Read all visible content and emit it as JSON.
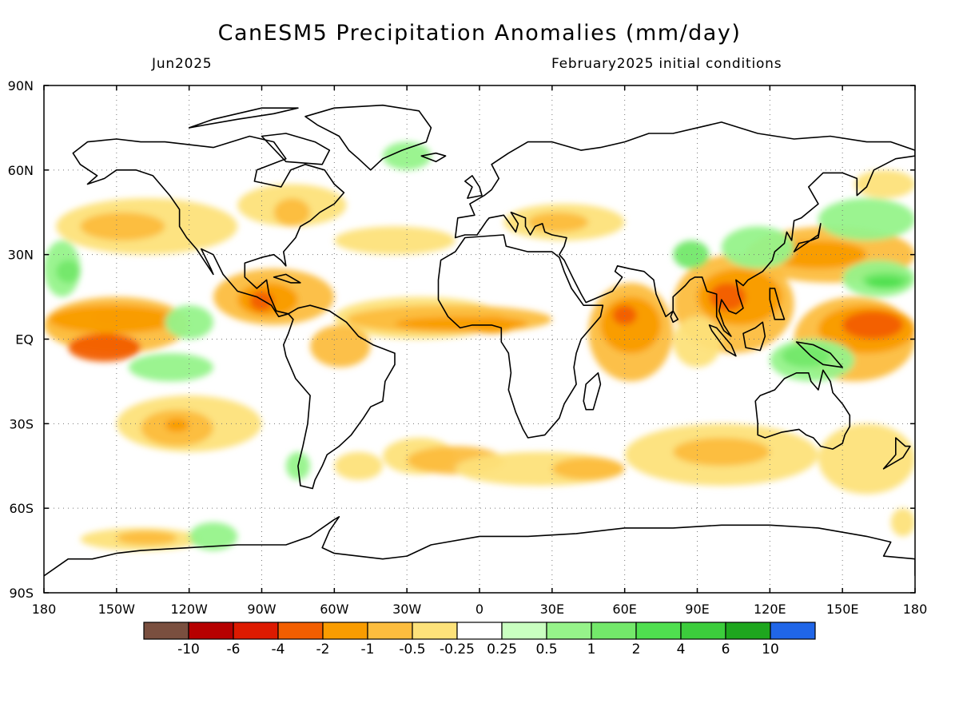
{
  "title": "CanESM5 Precipitation Anomalies (mm/day)",
  "subtitle_left": "Jun2025",
  "subtitle_right": "February2025 initial conditions",
  "lat_ticks": [
    "90N",
    "60N",
    "30N",
    "EQ",
    "30S",
    "60S",
    "90S"
  ],
  "lon_ticks": [
    "180",
    "150W",
    "120W",
    "90W",
    "60W",
    "30W",
    "0",
    "30E",
    "60E",
    "90E",
    "120E",
    "150E",
    "180"
  ],
  "colorbar": {
    "colors": [
      "#7a4f3f",
      "#b60000",
      "#dd1a00",
      "#f25e00",
      "#f99c00",
      "#fcbd3e",
      "#fde27a",
      "#ffffff",
      "#c9ffc0",
      "#96f38a",
      "#73e86a",
      "#4fdf4f",
      "#3ccd3c",
      "#1ea61e",
      "#2066e8"
    ],
    "labels": [
      "-10",
      "-6",
      "-4",
      "-2",
      "-1",
      "-0.5",
      "-0.25",
      "0.25",
      "0.5",
      "1",
      "2",
      "4",
      "6",
      "10"
    ]
  },
  "chart_data": {
    "type": "heatmap",
    "variable": "Precipitation Anomalies",
    "units": "mm/day",
    "model": "CanESM5",
    "valid_month": "Jun2025",
    "initialization": "February2025 initial conditions",
    "x_range": [
      -180,
      180
    ],
    "y_range": [
      -90,
      90
    ],
    "contour_levels": [
      -10,
      -6,
      -4,
      -2,
      -1,
      -0.5,
      -0.25,
      0.25,
      0.5,
      1,
      2,
      4,
      6,
      10
    ],
    "features": [
      {
        "lon": -160,
        "lat": 7,
        "value": -2
      },
      {
        "lon": -130,
        "lat": 5,
        "value": -1
      },
      {
        "lon": -170,
        "lat": -3,
        "value": -2
      },
      {
        "lon": -160,
        "lat": -5,
        "value": -4
      },
      {
        "lon": -125,
        "lat": -30,
        "value": -1
      },
      {
        "lon": -175,
        "lat": 40,
        "value": -0.5
      },
      {
        "lon": -90,
        "lat": 13,
        "value": -4
      },
      {
        "lon": -80,
        "lat": 15,
        "value": -2
      },
      {
        "lon": -60,
        "lat": 10,
        "value": -1
      },
      {
        "lon": -30,
        "lat": 5,
        "value": -1
      },
      {
        "lon": 5,
        "lat": 5,
        "value": -2
      },
      {
        "lon": 20,
        "lat": 45,
        "value": -0.5
      },
      {
        "lon": 60,
        "lat": 10,
        "value": -2
      },
      {
        "lon": 95,
        "lat": 18,
        "value": -2
      },
      {
        "lon": 115,
        "lat": 15,
        "value": -2
      },
      {
        "lon": 150,
        "lat": 30,
        "value": -1
      },
      {
        "lon": 160,
        "lat": 10,
        "value": -4
      },
      {
        "lon": 175,
        "lat": 0,
        "value": -2
      },
      {
        "lon": 160,
        "lat": 20,
        "value": 2
      },
      {
        "lon": 90,
        "lat": 30,
        "value": 1
      },
      {
        "lon": 120,
        "lat": -5,
        "value": 1
      },
      {
        "lon": -165,
        "lat": 25,
        "value": 0.5
      },
      {
        "lon": -150,
        "lat": -70,
        "value": -1
      },
      {
        "lon": -20,
        "lat": -40,
        "value": -0.5
      },
      {
        "lon": 100,
        "lat": -40,
        "value": -0.5
      }
    ]
  }
}
